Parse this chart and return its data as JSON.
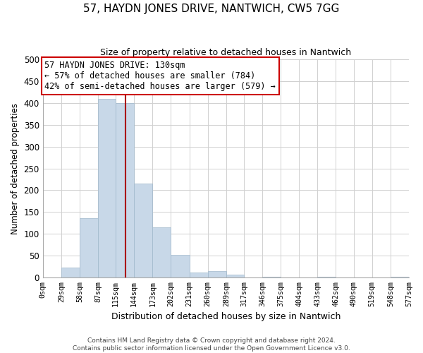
{
  "title": "57, HAYDN JONES DRIVE, NANTWICH, CW5 7GG",
  "subtitle": "Size of property relative to detached houses in Nantwich",
  "xlabel": "Distribution of detached houses by size in Nantwich",
  "ylabel": "Number of detached properties",
  "footer_line1": "Contains HM Land Registry data © Crown copyright and database right 2024.",
  "footer_line2": "Contains public sector information licensed under the Open Government Licence v3.0.",
  "bin_edges": [
    0,
    29,
    58,
    87,
    115,
    144,
    173,
    202,
    231,
    260,
    289,
    317,
    346,
    375,
    404,
    433,
    462,
    490,
    519,
    548,
    577
  ],
  "bar_heights": [
    0,
    22,
    136,
    410,
    400,
    215,
    115,
    52,
    11,
    15,
    6,
    0,
    1,
    0,
    0,
    1,
    0,
    0,
    0,
    1
  ],
  "bar_color": "#c8d8e8",
  "bar_edge_color": "#a0b8cc",
  "property_size": 130,
  "property_line_color": "#aa0000",
  "ylim": [
    0,
    500
  ],
  "yticks": [
    0,
    50,
    100,
    150,
    200,
    250,
    300,
    350,
    400,
    450,
    500
  ],
  "xtick_labels": [
    "0sqm",
    "29sqm",
    "58sqm",
    "87sqm",
    "115sqm",
    "144sqm",
    "173sqm",
    "202sqm",
    "231sqm",
    "260sqm",
    "289sqm",
    "317sqm",
    "346sqm",
    "375sqm",
    "404sqm",
    "433sqm",
    "462sqm",
    "490sqm",
    "519sqm",
    "548sqm",
    "577sqm"
  ],
  "annotation_title": "57 HAYDN JONES DRIVE: 130sqm",
  "annotation_line1": "← 57% of detached houses are smaller (784)",
  "annotation_line2": "42% of semi-detached houses are larger (579) →",
  "annotation_box_color": "#ffffff",
  "annotation_box_edge_color": "#cc0000",
  "background_color": "#ffffff",
  "grid_color": "#d0d0d0"
}
